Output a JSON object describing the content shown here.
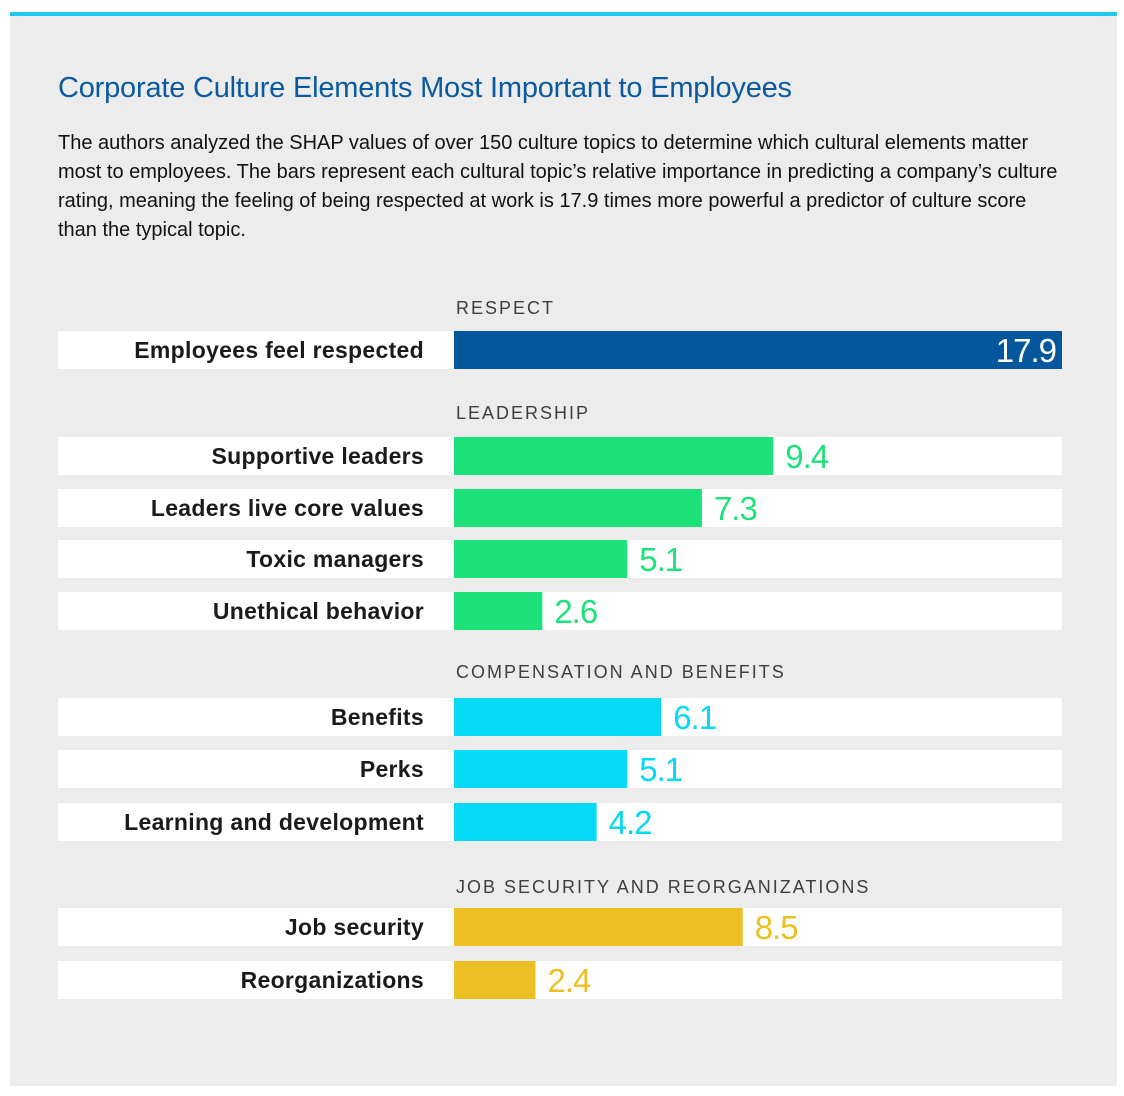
{
  "title": "Corporate Culture Elements Most Important to Employees",
  "subtitle": "The authors analyzed the SHAP values of over 150 culture topics to determine which cultural elements matter most to employees. The bars represent each cultural topic’s relative importance in predicting a company’s culture rating, meaning the feeling of being respected at work is 17.9 times more powerful a predictor of culture score than the typical topic.",
  "chart_data": {
    "type": "bar",
    "orientation": "horizontal",
    "title": "Corporate Culture Elements Most Important to Employees",
    "xlim": [
      0,
      17.9
    ],
    "grid": false,
    "groups": [
      {
        "name": "RESPECT",
        "color": "#04579c",
        "items": [
          {
            "label": "Employees feel respected",
            "value": 17.9,
            "value_label": "17.9"
          }
        ]
      },
      {
        "name": "LEADERSHIP",
        "color": "#1de27a",
        "items": [
          {
            "label": "Supportive leaders",
            "value": 9.4,
            "value_label": "9.4"
          },
          {
            "label": "Leaders live core values",
            "value": 7.3,
            "value_label": "7.3"
          },
          {
            "label": "Toxic managers",
            "value": 5.1,
            "value_label": "5.1"
          },
          {
            "label": "Unethical behavior",
            "value": 2.6,
            "value_label": "2.6"
          }
        ]
      },
      {
        "name": "COMPENSATION AND BENEFITS",
        "color": "#06d9f5",
        "items": [
          {
            "label": "Benefits",
            "value": 6.1,
            "value_label": "6.1"
          },
          {
            "label": "Perks",
            "value": 5.1,
            "value_label": "5.1"
          },
          {
            "label": "Learning and development",
            "value": 4.2,
            "value_label": "4.2"
          }
        ]
      },
      {
        "name": "JOB SECURITY AND REORGANIZATIONS",
        "color": "#ecc024",
        "items": [
          {
            "label": "Job security",
            "value": 8.5,
            "value_label": "8.5"
          },
          {
            "label": "Reorganizations",
            "value": 2.4,
            "value_label": "2.4"
          }
        ]
      }
    ]
  }
}
